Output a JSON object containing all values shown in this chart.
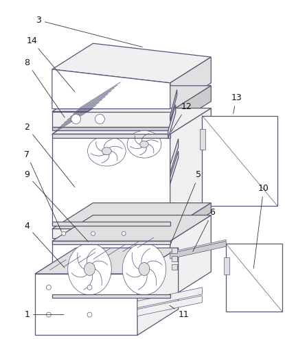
{
  "bg_color": "#ffffff",
  "line_color": "#555577",
  "fig_width": 4.15,
  "fig_height": 4.94,
  "lw": 0.9,
  "tlw": 0.5
}
